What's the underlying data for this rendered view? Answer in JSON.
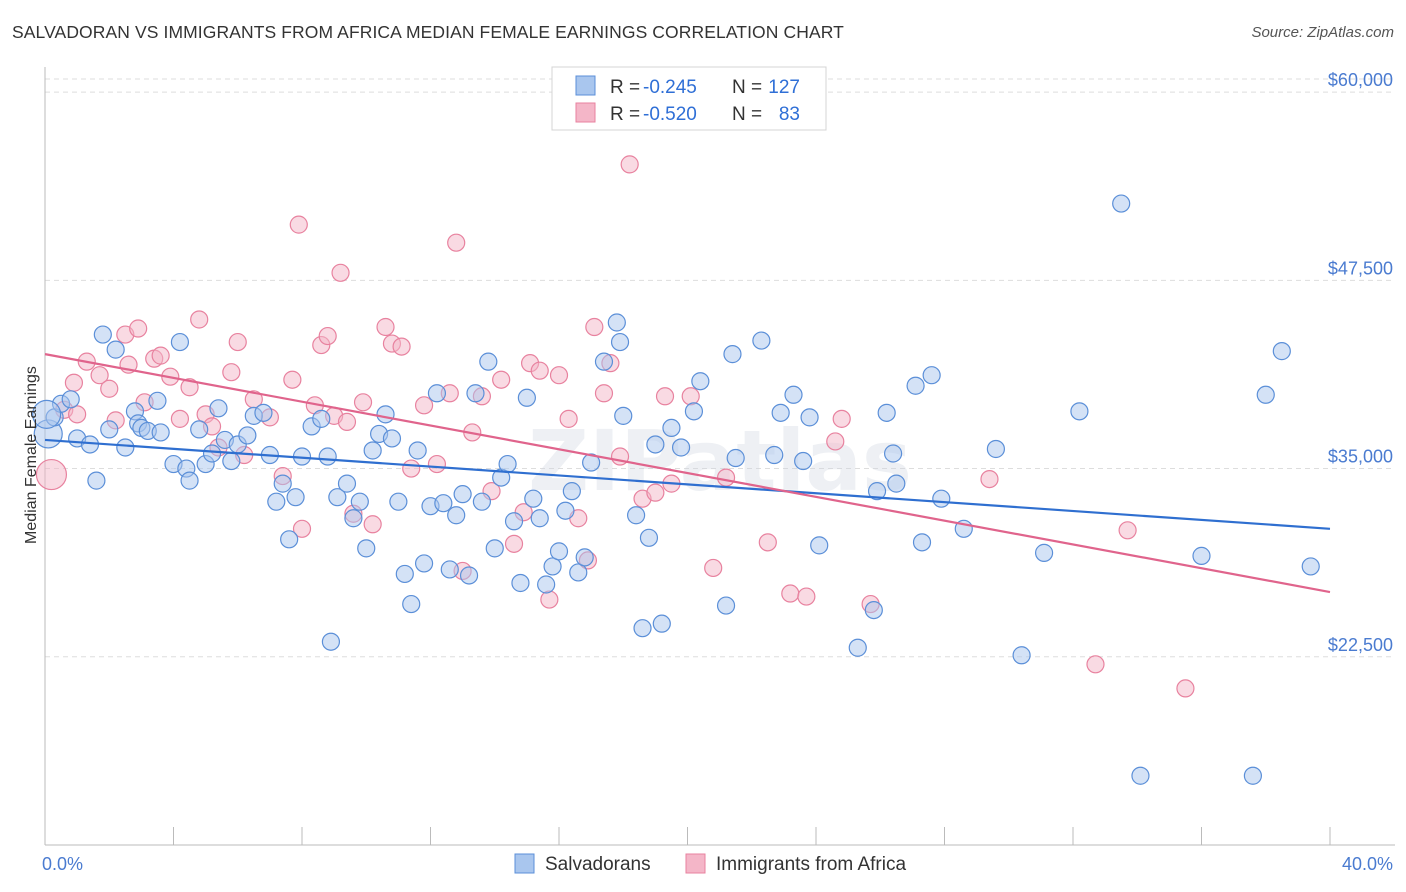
{
  "title": "SALVADORAN VS IMMIGRANTS FROM AFRICA MEDIAN FEMALE EARNINGS CORRELATION CHART",
  "source": "Source: ZipAtlas.com",
  "watermark": "ZIPatlas",
  "colors": {
    "blue_fill": "#a9c6ee",
    "blue_stroke": "#5b8fd8",
    "blue_line": "#2f6fd0",
    "pink_fill": "#f4b6c8",
    "pink_stroke": "#e8829f",
    "pink_line": "#e0648c",
    "tick_text": "#4a7bd0",
    "grid": "#dddddd"
  },
  "legend": {
    "rows": [
      {
        "r_label": "R =",
        "r_value": "-0.245",
        "n_label": "N =",
        "n_value": "127"
      },
      {
        "r_label": "R =",
        "r_value": "-0.520",
        "n_label": "N =",
        "n_value": "83"
      }
    ]
  },
  "chart_data": {
    "type": "scatter",
    "title": "SALVADORAN VS IMMIGRANTS FROM AFRICA MEDIAN FEMALE EARNINGS CORRELATION CHART",
    "xlabel": "",
    "ylabel": "Median Female Earnings",
    "xlim": [
      0,
      40
    ],
    "ylim": [
      10000,
      62000
    ],
    "x_tick_labels": [
      "0.0%",
      "40.0%"
    ],
    "y_ticks": [
      22500,
      35000,
      47500,
      60000
    ],
    "y_tick_labels": [
      "$22,500",
      "$35,000",
      "$47,500",
      "$60,000"
    ],
    "grid": true,
    "legend_position": "top-center",
    "series": [
      {
        "name": "Salvadorans",
        "trend": {
          "x": [
            0,
            40
          ],
          "y": [
            36900,
            31000
          ]
        },
        "points": [
          [
            0.1,
            37300
          ],
          [
            0.3,
            38400
          ],
          [
            0.5,
            39300
          ],
          [
            0.8,
            39600
          ],
          [
            1.0,
            37000
          ],
          [
            1.4,
            36600
          ],
          [
            1.6,
            34200
          ],
          [
            1.8,
            43900
          ],
          [
            2.0,
            37600
          ],
          [
            2.2,
            42900
          ],
          [
            2.5,
            36400
          ],
          [
            2.8,
            38800
          ],
          [
            2.9,
            38000
          ],
          [
            3.0,
            37700
          ],
          [
            3.2,
            37500
          ],
          [
            3.5,
            39500
          ],
          [
            3.6,
            37400
          ],
          [
            4.0,
            35300
          ],
          [
            4.2,
            43400
          ],
          [
            4.4,
            35000
          ],
          [
            4.5,
            34200
          ],
          [
            4.8,
            37600
          ],
          [
            5.0,
            35300
          ],
          [
            5.2,
            36000
          ],
          [
            5.4,
            39000
          ],
          [
            5.6,
            36900
          ],
          [
            5.8,
            35500
          ],
          [
            6.0,
            36600
          ],
          [
            6.3,
            37200
          ],
          [
            6.5,
            38500
          ],
          [
            6.8,
            38700
          ],
          [
            7.0,
            35900
          ],
          [
            7.2,
            32800
          ],
          [
            7.4,
            34000
          ],
          [
            7.6,
            30300
          ],
          [
            7.8,
            33100
          ],
          [
            8.0,
            35800
          ],
          [
            8.3,
            37800
          ],
          [
            8.6,
            38300
          ],
          [
            8.8,
            35800
          ],
          [
            8.9,
            23500
          ],
          [
            9.1,
            33100
          ],
          [
            9.4,
            34000
          ],
          [
            9.6,
            31700
          ],
          [
            9.8,
            32800
          ],
          [
            10.0,
            29700
          ],
          [
            10.2,
            36200
          ],
          [
            10.4,
            37300
          ],
          [
            10.6,
            38600
          ],
          [
            10.8,
            37000
          ],
          [
            11.0,
            32800
          ],
          [
            11.2,
            28000
          ],
          [
            11.4,
            26000
          ],
          [
            11.6,
            36200
          ],
          [
            11.8,
            28700
          ],
          [
            12.0,
            32500
          ],
          [
            12.2,
            40000
          ],
          [
            12.4,
            32700
          ],
          [
            12.6,
            28300
          ],
          [
            12.8,
            31900
          ],
          [
            13.0,
            33300
          ],
          [
            13.2,
            27900
          ],
          [
            13.4,
            40000
          ],
          [
            13.6,
            32800
          ],
          [
            13.8,
            42100
          ],
          [
            14.0,
            29700
          ],
          [
            14.2,
            34400
          ],
          [
            14.4,
            35300
          ],
          [
            14.6,
            31500
          ],
          [
            14.8,
            27400
          ],
          [
            15.0,
            39700
          ],
          [
            15.2,
            33000
          ],
          [
            15.4,
            31700
          ],
          [
            15.6,
            27300
          ],
          [
            15.8,
            28500
          ],
          [
            16.0,
            29500
          ],
          [
            16.2,
            32200
          ],
          [
            16.4,
            33500
          ],
          [
            16.6,
            28100
          ],
          [
            16.8,
            29100
          ],
          [
            17.0,
            35400
          ],
          [
            17.4,
            42100
          ],
          [
            17.8,
            44700
          ],
          [
            17.9,
            43400
          ],
          [
            18.0,
            38500
          ],
          [
            18.4,
            31900
          ],
          [
            18.6,
            24400
          ],
          [
            18.8,
            30400
          ],
          [
            19.0,
            36600
          ],
          [
            19.2,
            24700
          ],
          [
            19.5,
            37700
          ],
          [
            19.8,
            36400
          ],
          [
            20.2,
            38800
          ],
          [
            20.4,
            40800
          ],
          [
            21.2,
            25900
          ],
          [
            21.4,
            42600
          ],
          [
            21.5,
            35700
          ],
          [
            22.3,
            43500
          ],
          [
            22.7,
            35900
          ],
          [
            22.9,
            38700
          ],
          [
            23.3,
            39900
          ],
          [
            23.6,
            35500
          ],
          [
            23.8,
            38400
          ],
          [
            24.1,
            29900
          ],
          [
            25.3,
            23100
          ],
          [
            25.8,
            25600
          ],
          [
            25.9,
            33500
          ],
          [
            26.2,
            38700
          ],
          [
            26.4,
            36000
          ],
          [
            26.5,
            34000
          ],
          [
            27.1,
            40500
          ],
          [
            27.3,
            30100
          ],
          [
            27.6,
            41200
          ],
          [
            27.9,
            33000
          ],
          [
            28.6,
            31000
          ],
          [
            29.6,
            36300
          ],
          [
            30.4,
            22600
          ],
          [
            31.1,
            29400
          ],
          [
            32.2,
            38800
          ],
          [
            33.5,
            52600
          ],
          [
            34.1,
            14600
          ],
          [
            36.0,
            29200
          ],
          [
            37.6,
            14600
          ],
          [
            38.0,
            39900
          ],
          [
            38.5,
            42800
          ],
          [
            39.4,
            28500
          ],
          [
            0.05,
            38600
          ]
        ]
      },
      {
        "name": "Immigrants from Africa",
        "trend": {
          "x": [
            0,
            40
          ],
          "y": [
            42600,
            26800
          ]
        },
        "points": [
          [
            0.2,
            34600
          ],
          [
            0.6,
            38900
          ],
          [
            0.9,
            40700
          ],
          [
            1.3,
            42100
          ],
          [
            1.7,
            41200
          ],
          [
            2.0,
            40300
          ],
          [
            2.5,
            43900
          ],
          [
            2.6,
            41900
          ],
          [
            2.9,
            44300
          ],
          [
            3.1,
            39400
          ],
          [
            3.4,
            42300
          ],
          [
            3.6,
            42500
          ],
          [
            3.9,
            41100
          ],
          [
            4.2,
            38300
          ],
          [
            4.5,
            40400
          ],
          [
            4.8,
            44900
          ],
          [
            5.0,
            38600
          ],
          [
            5.4,
            36400
          ],
          [
            5.8,
            41400
          ],
          [
            6.0,
            43400
          ],
          [
            6.2,
            35900
          ],
          [
            6.5,
            39600
          ],
          [
            7.0,
            38400
          ],
          [
            7.4,
            34500
          ],
          [
            7.7,
            40900
          ],
          [
            7.9,
            51200
          ],
          [
            8.0,
            31000
          ],
          [
            8.4,
            39200
          ],
          [
            8.6,
            43200
          ],
          [
            8.8,
            43800
          ],
          [
            9.0,
            38500
          ],
          [
            9.2,
            48000
          ],
          [
            9.6,
            32000
          ],
          [
            9.9,
            39400
          ],
          [
            10.2,
            31300
          ],
          [
            10.6,
            44400
          ],
          [
            10.8,
            43300
          ],
          [
            11.1,
            43100
          ],
          [
            11.4,
            35000
          ],
          [
            11.8,
            39200
          ],
          [
            12.2,
            35300
          ],
          [
            12.6,
            40000
          ],
          [
            12.8,
            50000
          ],
          [
            13.0,
            28200
          ],
          [
            13.3,
            37400
          ],
          [
            13.6,
            39800
          ],
          [
            13.9,
            33500
          ],
          [
            14.2,
            40900
          ],
          [
            14.6,
            30000
          ],
          [
            14.9,
            32100
          ],
          [
            15.1,
            42000
          ],
          [
            15.4,
            41500
          ],
          [
            15.7,
            26300
          ],
          [
            16.0,
            41200
          ],
          [
            16.3,
            38300
          ],
          [
            16.6,
            31700
          ],
          [
            16.9,
            28900
          ],
          [
            17.1,
            44400
          ],
          [
            17.4,
            40000
          ],
          [
            17.6,
            42000
          ],
          [
            17.9,
            35800
          ],
          [
            18.2,
            55200
          ],
          [
            18.6,
            33000
          ],
          [
            19.0,
            33400
          ],
          [
            19.3,
            39800
          ],
          [
            19.5,
            34000
          ],
          [
            20.1,
            39800
          ],
          [
            20.8,
            28400
          ],
          [
            21.2,
            34400
          ],
          [
            22.5,
            30100
          ],
          [
            23.2,
            26700
          ],
          [
            23.7,
            26500
          ],
          [
            24.6,
            36800
          ],
          [
            24.8,
            38300
          ],
          [
            25.7,
            26000
          ],
          [
            29.4,
            34300
          ],
          [
            32.7,
            22000
          ],
          [
            33.7,
            30900
          ],
          [
            35.5,
            20400
          ],
          [
            1.0,
            38600
          ],
          [
            2.2,
            38200
          ],
          [
            5.2,
            37800
          ],
          [
            9.4,
            38100
          ]
        ]
      }
    ]
  },
  "bottom_legend": {
    "items": [
      {
        "label": "Salvadorans"
      },
      {
        "label": "Immigrants from Africa"
      }
    ]
  }
}
